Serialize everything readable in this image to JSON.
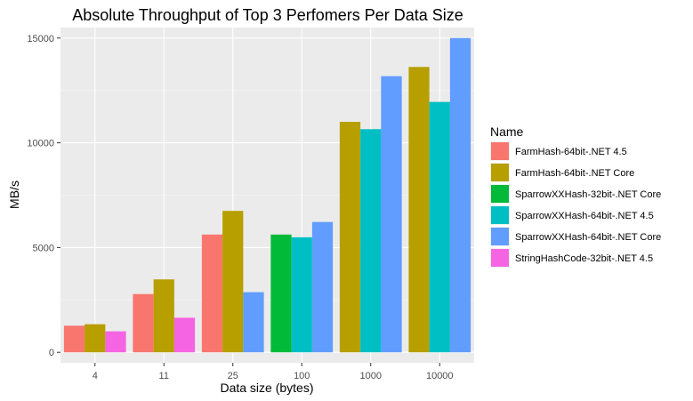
{
  "chart_data": {
    "type": "bar",
    "title": "Absolute Throughput of Top 3 Perfomers Per Data Size",
    "xlabel": "Data size (bytes)",
    "ylabel": "MB/s",
    "ylim": [
      -500,
      15500
    ],
    "yticks": [
      0,
      5000,
      10000,
      15000
    ],
    "grid": true,
    "legend_title": "Name",
    "legend_position": "right",
    "legend": [
      {
        "name": "FarmHash-64bit-.NET 4.5",
        "color": "#F8766D"
      },
      {
        "name": "FarmHash-64bit-.NET Core",
        "color": "#B79F00"
      },
      {
        "name": "SparrowXXHash-32bit-.NET Core",
        "color": "#00BA38"
      },
      {
        "name": "SparrowXXHash-64bit-.NET 4.5",
        "color": "#00BFC4"
      },
      {
        "name": "SparrowXXHash-64bit-.NET Core",
        "color": "#619CFF"
      },
      {
        "name": "StringHashCode-32bit-.NET 4.5",
        "color": "#F564E3"
      }
    ],
    "categories": [
      "4",
      "11",
      "25",
      "100",
      "1000",
      "10000"
    ],
    "groups": [
      {
        "category": "4",
        "bars": [
          {
            "series": "FarmHash-64bit-.NET 4.5",
            "value": 1270
          },
          {
            "series": "FarmHash-64bit-.NET Core",
            "value": 1340
          },
          {
            "series": "StringHashCode-32bit-.NET 4.5",
            "value": 1000
          }
        ]
      },
      {
        "category": "11",
        "bars": [
          {
            "series": "FarmHash-64bit-.NET 4.5",
            "value": 2780
          },
          {
            "series": "FarmHash-64bit-.NET Core",
            "value": 3480
          },
          {
            "series": "StringHashCode-32bit-.NET 4.5",
            "value": 1650
          }
        ]
      },
      {
        "category": "25",
        "bars": [
          {
            "series": "FarmHash-64bit-.NET 4.5",
            "value": 5620
          },
          {
            "series": "FarmHash-64bit-.NET Core",
            "value": 6750
          },
          {
            "series": "SparrowXXHash-64bit-.NET Core",
            "value": 2870
          }
        ]
      },
      {
        "category": "100",
        "bars": [
          {
            "series": "SparrowXXHash-32bit-.NET Core",
            "value": 5620
          },
          {
            "series": "SparrowXXHash-64bit-.NET 4.5",
            "value": 5490
          },
          {
            "series": "SparrowXXHash-64bit-.NET Core",
            "value": 6220
          }
        ]
      },
      {
        "category": "1000",
        "bars": [
          {
            "series": "FarmHash-64bit-.NET Core",
            "value": 11000
          },
          {
            "series": "SparrowXXHash-64bit-.NET 4.5",
            "value": 10650
          },
          {
            "series": "SparrowXXHash-64bit-.NET Core",
            "value": 13180
          }
        ]
      },
      {
        "category": "10000",
        "bars": [
          {
            "series": "FarmHash-64bit-.NET Core",
            "value": 13620
          },
          {
            "series": "SparrowXXHash-64bit-.NET 4.5",
            "value": 11950
          },
          {
            "series": "SparrowXXHash-64bit-.NET Core",
            "value": 15000
          }
        ]
      }
    ]
  }
}
